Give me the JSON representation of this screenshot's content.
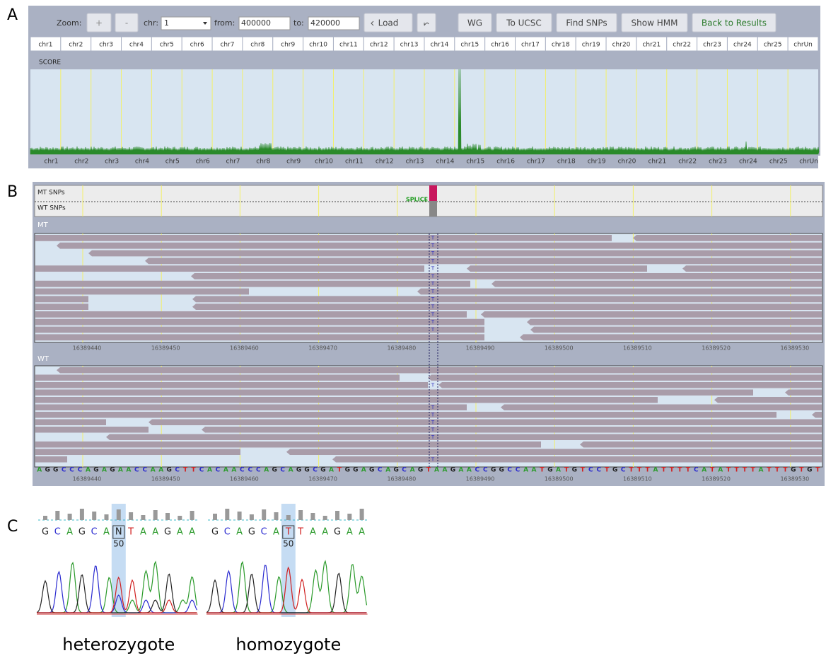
{
  "panel_labels": [
    "A",
    "B",
    "C"
  ],
  "toolbar": {
    "zoom_label": "Zoom:",
    "zoom_in": "+",
    "zoom_out": "-",
    "chr_label": "chr:",
    "chr_value": "1",
    "from_label": "from:",
    "from_value": "400000",
    "to_label": "to:",
    "to_value": "420000",
    "load": "Load",
    "buttons": [
      "WG",
      "To UCSC",
      "Find SNPs",
      "Show HMM",
      "Back to Results"
    ]
  },
  "chromosomes": [
    "chr1",
    "chr2",
    "chr3",
    "chr4",
    "chr5",
    "chr6",
    "chr7",
    "chr8",
    "chr9",
    "chr10",
    "chr11",
    "chr12",
    "chr13",
    "chr14",
    "chr15",
    "chr16",
    "chr17",
    "chr18",
    "chr19",
    "chr20",
    "chr21",
    "chr22",
    "chr23",
    "chr24",
    "chr25",
    "chrUn"
  ],
  "score_label": "SCORE",
  "browser": {
    "snp_tracks": [
      "MT SNPs",
      "WT SNPs"
    ],
    "splice_label": "SPLICE",
    "mt_label": "MT",
    "wt_label": "WT",
    "allele": "T",
    "positions": [
      16389440,
      16389450,
      16389460,
      16389470,
      16389480,
      16389490,
      16389500,
      16389510,
      16389520,
      16389530
    ],
    "reference_sequence": [
      "A",
      "G",
      "G",
      "C",
      "C",
      "C",
      "A",
      "G",
      "A",
      "G",
      "A",
      "A",
      "C",
      "C",
      "A",
      "A",
      "G",
      "C",
      "T",
      "T",
      "C",
      "A",
      "C",
      "A",
      "A",
      "C",
      "C",
      "C",
      "A",
      "G",
      "C",
      "A",
      "G",
      "G",
      "C",
      "G",
      "A",
      "T",
      "G",
      "G",
      "A",
      "G",
      "C",
      "A",
      "G",
      "C",
      "A",
      "G",
      "T",
      "A",
      "A",
      "G",
      "A",
      "A",
      "C",
      "C",
      "G",
      "G",
      "C",
      "C",
      "A",
      "A",
      "T",
      "G",
      "A",
      "T",
      "G",
      "T",
      "C",
      "C",
      "T",
      "G",
      "C",
      "T",
      "T",
      "T",
      "A",
      "T",
      "T",
      "T",
      "T",
      "C",
      "A",
      "T",
      "A",
      "T",
      "T",
      "T",
      "T",
      "A",
      "T",
      "T",
      "T",
      "G",
      "T",
      "G",
      "T"
    ]
  },
  "sanger": {
    "traces": [
      {
        "sequence": [
          "G",
          "C",
          "A",
          "G",
          "C",
          "A",
          "N",
          "T",
          "A",
          "A",
          "G",
          "A",
          "A"
        ],
        "position_label": "50",
        "caption": "heterozygote"
      },
      {
        "sequence": [
          "G",
          "C",
          "A",
          "G",
          "C",
          "A",
          "T",
          "T",
          "A",
          "A",
          "G",
          "A",
          "A"
        ],
        "position_label": "50",
        "caption": "homozygote"
      }
    ]
  }
}
